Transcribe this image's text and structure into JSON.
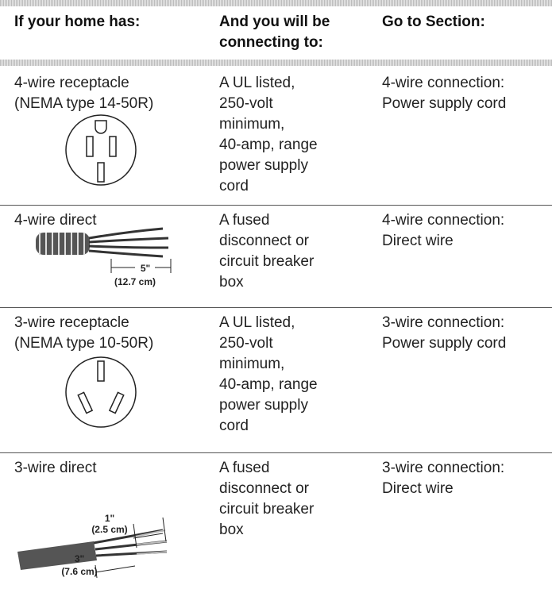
{
  "table": {
    "headers": [
      [
        "If your home has:"
      ],
      [
        "And you will be",
        "connecting to:"
      ],
      [
        "Go to Section:"
      ]
    ],
    "rows": [
      {
        "cells": [
          [
            "4-wire receptacle",
            "(NEMA type 14-50R)"
          ],
          [
            "A UL listed,",
            "250-volt",
            "minimum,",
            "40-amp, range",
            "power supply",
            "cord"
          ],
          [
            "4-wire connection:",
            "Power supply cord"
          ]
        ],
        "figure_labels": []
      },
      {
        "cells": [
          [
            "4-wire direct"
          ],
          [
            "A fused",
            "disconnect or",
            "circuit breaker",
            "box"
          ],
          [
            "4-wire connection:",
            "Direct wire"
          ]
        ],
        "figure_labels": [
          "5\"",
          "(12.7 cm)"
        ]
      },
      {
        "cells": [
          [
            "3-wire receptacle",
            "(NEMA type 10-50R)"
          ],
          [
            "A UL listed,",
            "250-volt",
            "minimum,",
            "40-amp, range",
            "power supply",
            "cord"
          ],
          [
            "3-wire connection:",
            "Power supply cord"
          ]
        ],
        "figure_labels": []
      },
      {
        "cells": [
          [
            "3-wire direct"
          ],
          [
            "A fused",
            "disconnect or",
            "circuit breaker",
            "box"
          ],
          [
            "3-wire connection:",
            "Direct wire"
          ]
        ],
        "figure_labels": [
          "1\"",
          "(2.5 cm)",
          "3\"",
          "(7.6 cm)"
        ]
      }
    ]
  }
}
